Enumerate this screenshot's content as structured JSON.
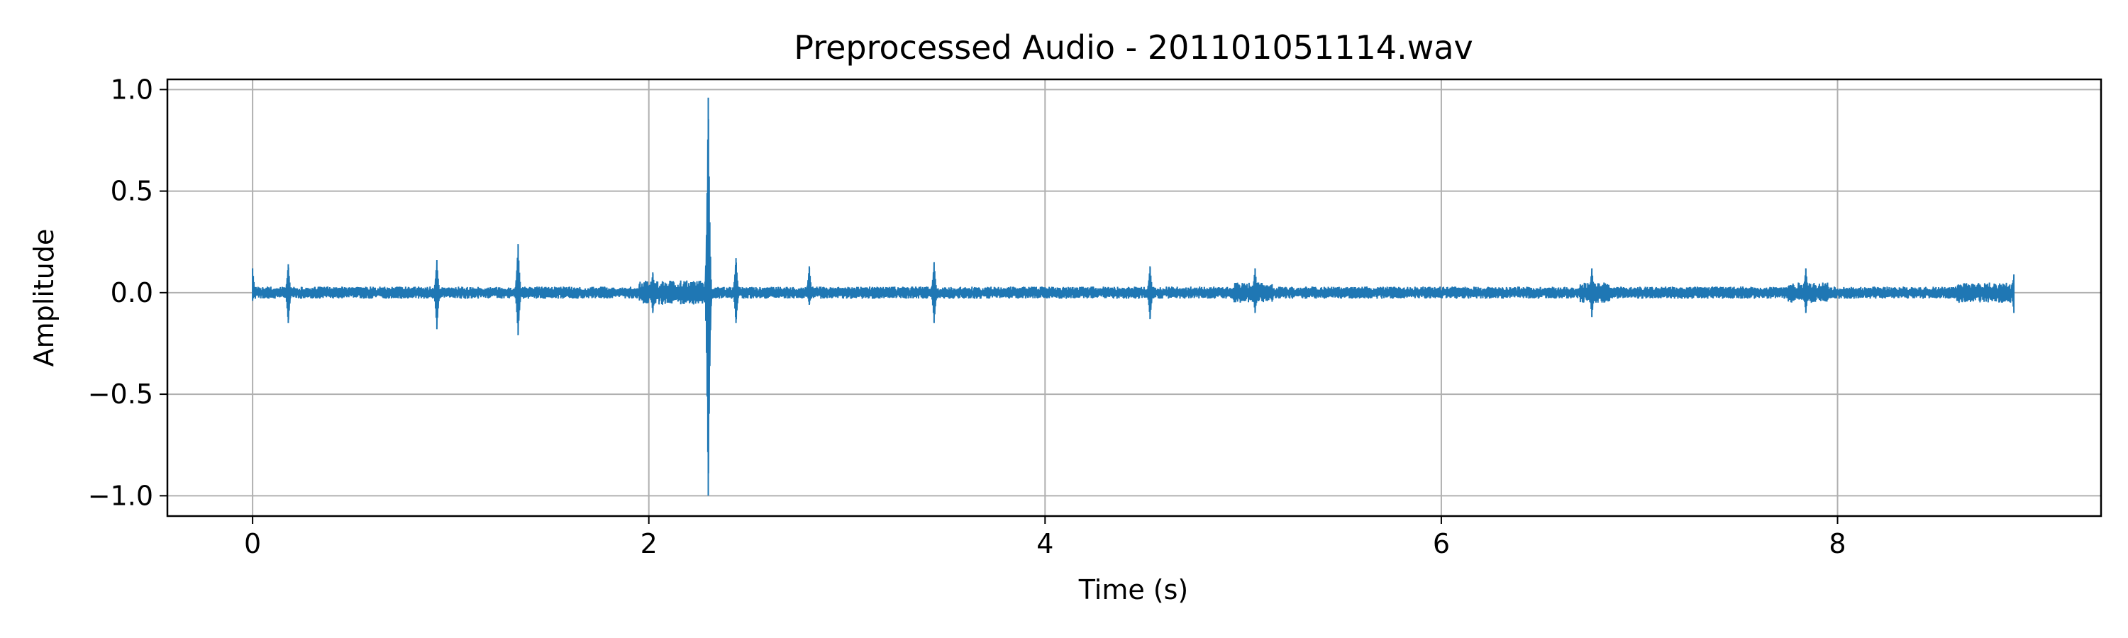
{
  "chart_data": {
    "type": "line",
    "title": "Preprocessed Audio - 201101051114.wav",
    "xlabel": "Time (s)",
    "ylabel": "Amplitude",
    "xlim": [
      -0.43,
      9.33
    ],
    "ylim": [
      -1.1,
      1.05
    ],
    "x_ticks": [
      0,
      2,
      4,
      6,
      8
    ],
    "x_tick_labels": [
      "0",
      "2",
      "4",
      "6",
      "8"
    ],
    "y_ticks": [
      1.0,
      0.5,
      0.0,
      -0.5,
      -1.0
    ],
    "y_tick_labels": [
      "1.0",
      "0.5",
      "0.0",
      "−0.5",
      "−1.0"
    ],
    "grid": true,
    "series": [
      {
        "color": "#1f77b4",
        "duration": 8.89,
        "base_noise_amplitude": 0.03,
        "spikes": [
          {
            "t": 0.0,
            "max": 0.12,
            "min": -0.04
          },
          {
            "t": 0.18,
            "max": 0.14,
            "min": -0.15
          },
          {
            "t": 0.93,
            "max": 0.16,
            "min": -0.18
          },
          {
            "t": 1.34,
            "max": 0.24,
            "min": -0.21
          },
          {
            "t": 2.02,
            "max": 0.1,
            "min": -0.1
          },
          {
            "t": 2.3,
            "max": 0.96,
            "min": -1.0
          },
          {
            "t": 2.44,
            "max": 0.17,
            "min": -0.15
          },
          {
            "t": 2.81,
            "max": 0.13,
            "min": -0.06
          },
          {
            "t": 3.44,
            "max": 0.15,
            "min": -0.15
          },
          {
            "t": 4.53,
            "max": 0.13,
            "min": -0.13
          },
          {
            "t": 5.06,
            "max": 0.12,
            "min": -0.1
          },
          {
            "t": 6.76,
            "max": 0.12,
            "min": -0.12
          },
          {
            "t": 7.84,
            "max": 0.12,
            "min": -0.1
          },
          {
            "t": 8.89,
            "max": 0.09,
            "min": -0.1
          }
        ],
        "energy_regions": [
          {
            "start": 1.95,
            "end": 2.3,
            "amplitude": 0.06
          },
          {
            "start": 4.95,
            "end": 5.15,
            "amplitude": 0.05
          },
          {
            "start": 6.7,
            "end": 6.85,
            "amplitude": 0.05
          },
          {
            "start": 7.75,
            "end": 7.95,
            "amplitude": 0.05
          },
          {
            "start": 8.6,
            "end": 8.89,
            "amplitude": 0.05
          }
        ]
      }
    ]
  }
}
